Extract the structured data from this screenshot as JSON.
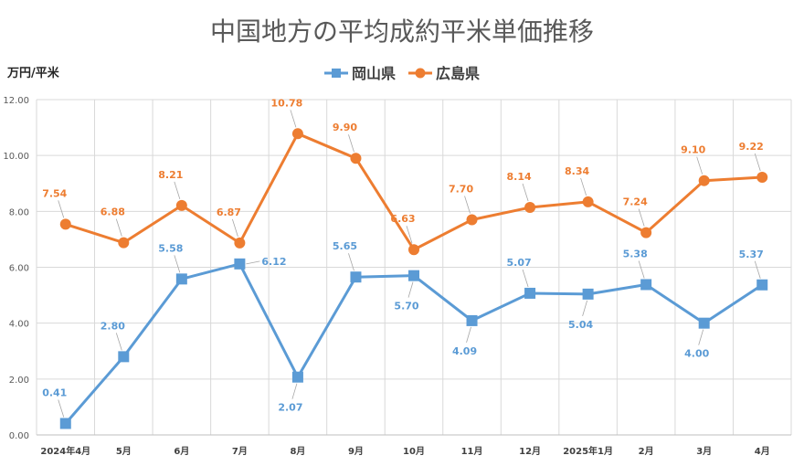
{
  "colors": {
    "okayama": "#5b9bd5",
    "hiroshima": "#ed7d31",
    "grid": "#d9d9d9",
    "title": "#595959"
  },
  "chart_data": {
    "type": "line",
    "title": "中国地方の平均成約平米単価推移",
    "ylabel": "万円/平米",
    "xlabel": "",
    "ylim": [
      0,
      12
    ],
    "yticks": [
      "0.00",
      "2.00",
      "4.00",
      "6.00",
      "8.00",
      "10.00",
      "12.00"
    ],
    "grid": true,
    "legend_position": "top-center",
    "categories": [
      "2024年4月",
      "5月",
      "6月",
      "7月",
      "8月",
      "9月",
      "10月",
      "11月",
      "12月",
      "2025年1月",
      "2月",
      "3月",
      "4月"
    ],
    "series": [
      {
        "name": "岡山県",
        "marker": "square",
        "color": "#5b9bd5",
        "values": [
          0.41,
          2.8,
          5.58,
          6.12,
          2.07,
          5.65,
          5.7,
          4.09,
          5.07,
          5.04,
          5.38,
          4.0,
          5.37
        ],
        "labels": [
          "0.41",
          "2.80",
          "5.58",
          "6.12",
          "2.07",
          "5.65",
          "5.70",
          "4.09",
          "5.07",
          "5.04",
          "5.38",
          "4.00",
          "5.37"
        ]
      },
      {
        "name": "広島県",
        "marker": "circle",
        "color": "#ed7d31",
        "values": [
          7.54,
          6.88,
          8.21,
          6.87,
          10.78,
          9.9,
          6.63,
          7.7,
          8.14,
          8.34,
          7.24,
          9.1,
          9.22
        ],
        "labels": [
          "7.54",
          "6.88",
          "8.21",
          "6.87",
          "10.78",
          "9.90",
          "6.63",
          "7.70",
          "8.14",
          "8.34",
          "7.24",
          "9.10",
          "9.22"
        ]
      }
    ]
  }
}
